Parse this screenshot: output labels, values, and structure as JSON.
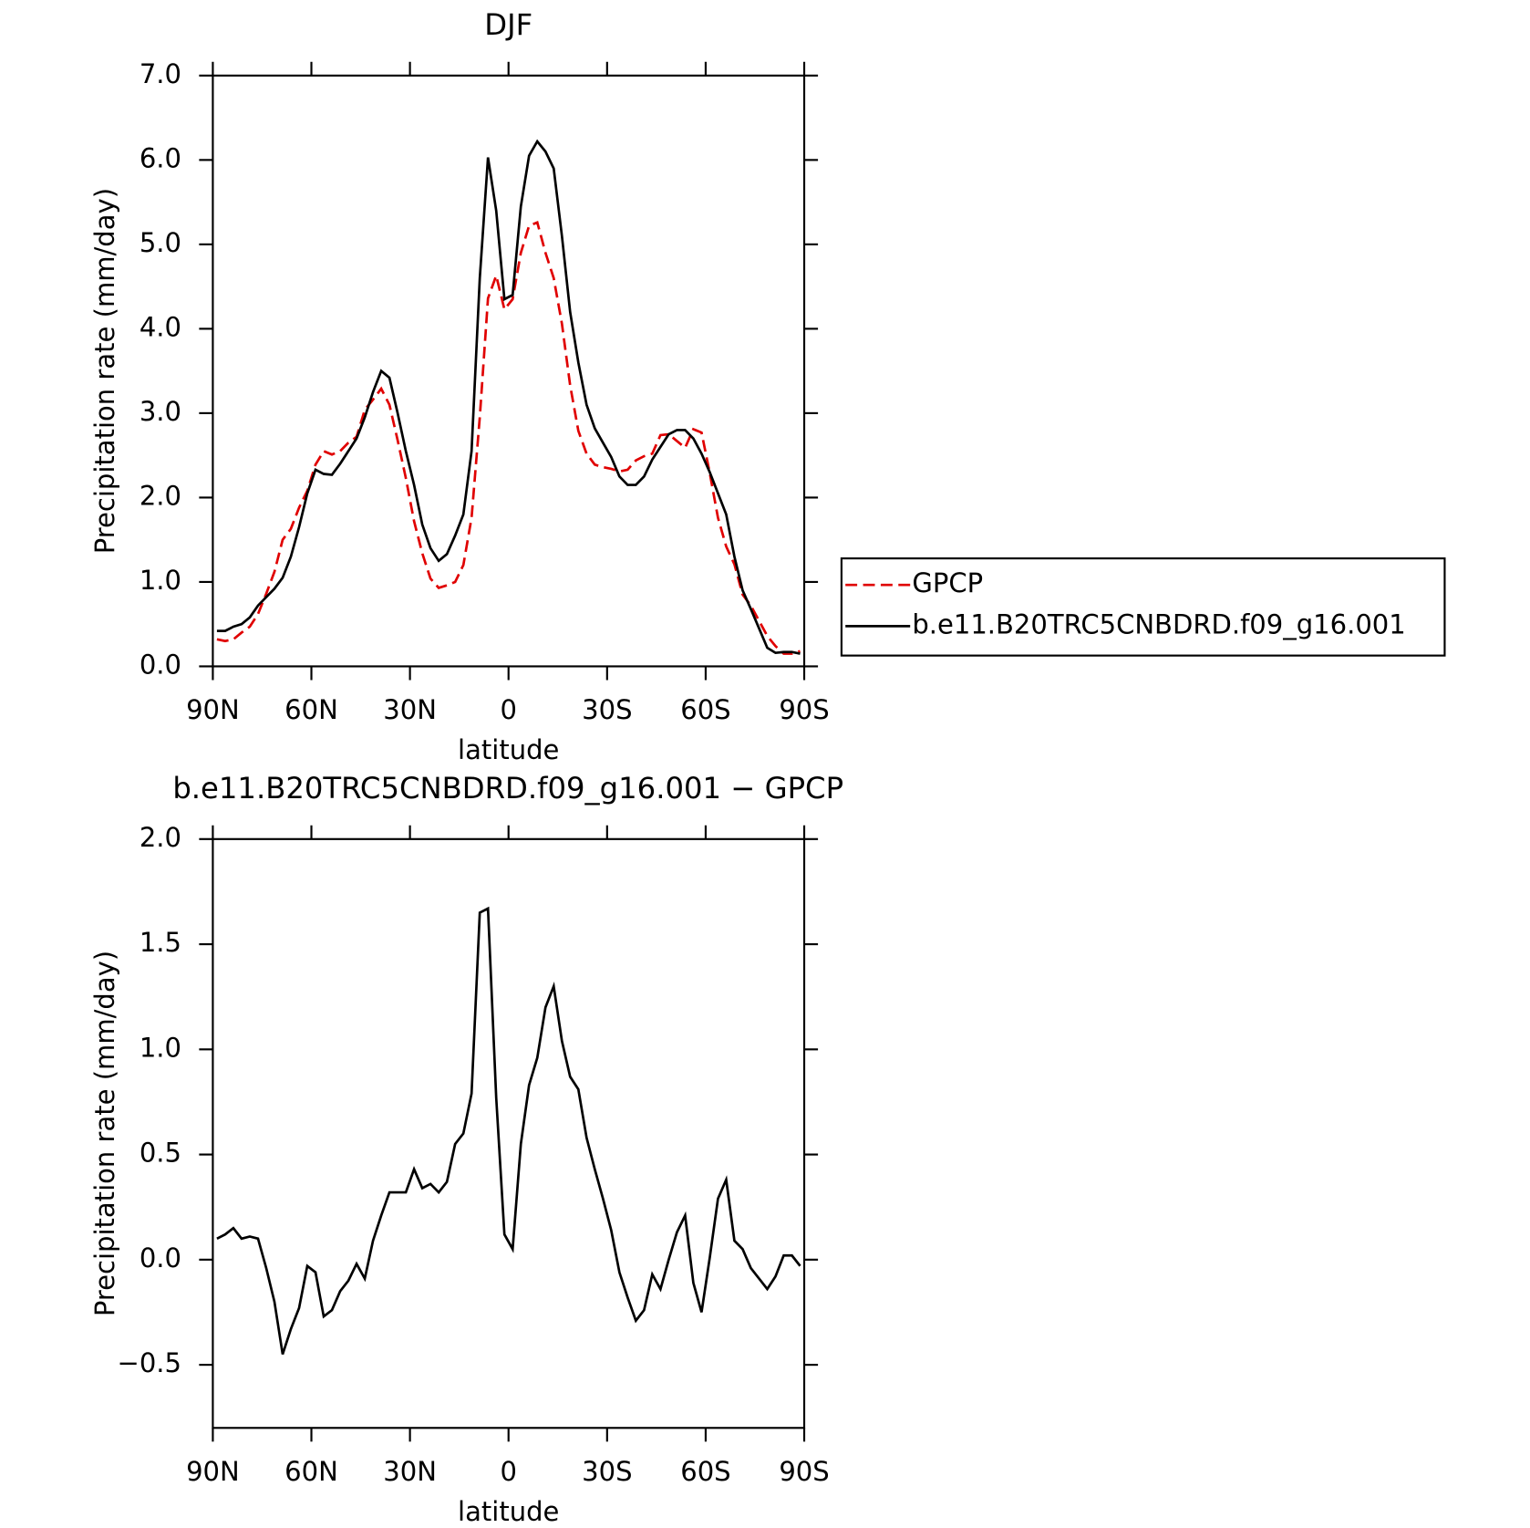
{
  "chart_data": [
    {
      "type": "line",
      "title": "DJF",
      "xlabel": "latitude",
      "ylabel": "Precipitation rate (mm/day)",
      "x": [
        88.75,
        86.25,
        83.75,
        81.25,
        78.75,
        76.25,
        73.75,
        71.25,
        68.75,
        66.25,
        63.75,
        61.25,
        58.75,
        56.25,
        53.75,
        51.25,
        48.75,
        46.25,
        43.75,
        41.25,
        38.75,
        36.25,
        33.75,
        31.25,
        28.75,
        26.25,
        23.75,
        21.25,
        18.75,
        16.25,
        13.75,
        11.25,
        8.75,
        6.25,
        3.75,
        1.25,
        -1.25,
        -3.75,
        -6.25,
        -8.75,
        -11.25,
        -13.75,
        -16.25,
        -18.75,
        -21.25,
        -23.75,
        -26.25,
        -28.75,
        -31.25,
        -33.75,
        -36.25,
        -38.75,
        -41.25,
        -43.75,
        -46.25,
        -48.75,
        -51.25,
        -53.75,
        -56.25,
        -58.75,
        -61.25,
        -63.75,
        -66.25,
        -68.75,
        -71.25,
        -73.75,
        -76.25,
        -78.75,
        -81.25,
        -83.75,
        -86.25,
        -88.75
      ],
      "series": [
        {
          "name": "GPCP",
          "color": "#e00000",
          "dashed": true,
          "values": [
            0.32,
            0.3,
            0.32,
            0.4,
            0.47,
            0.62,
            0.86,
            1.12,
            1.5,
            1.63,
            1.88,
            2.08,
            2.39,
            2.55,
            2.51,
            2.55,
            2.65,
            2.72,
            3.04,
            3.16,
            3.29,
            3.1,
            2.68,
            2.23,
            1.72,
            1.34,
            1.04,
            0.93,
            0.96,
            1.0,
            1.2,
            1.76,
            2.95,
            4.36,
            4.63,
            4.23,
            4.35,
            4.9,
            5.22,
            5.26,
            4.9,
            4.6,
            4.06,
            3.33,
            2.79,
            2.52,
            2.39,
            2.36,
            2.34,
            2.31,
            2.33,
            2.44,
            2.49,
            2.52,
            2.74,
            2.75,
            2.67,
            2.59,
            2.81,
            2.77,
            2.29,
            1.76,
            1.42,
            1.21,
            0.85,
            0.72,
            0.54,
            0.36,
            0.24,
            0.15,
            0.15,
            0.18
          ]
        },
        {
          "name": "b.e11.B20TRC5CNBDRD.f09_g16.001",
          "color": "#000000",
          "dashed": false,
          "values": [
            0.42,
            0.42,
            0.47,
            0.5,
            0.58,
            0.72,
            0.82,
            0.92,
            1.05,
            1.3,
            1.65,
            2.05,
            2.33,
            2.28,
            2.27,
            2.4,
            2.55,
            2.7,
            2.95,
            3.25,
            3.5,
            3.42,
            3.0,
            2.55,
            2.15,
            1.68,
            1.4,
            1.25,
            1.33,
            1.55,
            1.8,
            2.55,
            4.6,
            6.03,
            5.4,
            4.35,
            4.4,
            5.45,
            6.05,
            6.22,
            6.1,
            5.9,
            5.1,
            4.2,
            3.6,
            3.1,
            2.82,
            2.65,
            2.48,
            2.25,
            2.15,
            2.15,
            2.25,
            2.45,
            2.6,
            2.75,
            2.8,
            2.8,
            2.7,
            2.52,
            2.3,
            2.05,
            1.8,
            1.3,
            0.9,
            0.68,
            0.45,
            0.22,
            0.16,
            0.17,
            0.17,
            0.15
          ]
        }
      ],
      "xlim": [
        90,
        -90
      ],
      "xticks": [
        {
          "value": 90,
          "label": "90N"
        },
        {
          "value": 60,
          "label": "60N"
        },
        {
          "value": 30,
          "label": "30N"
        },
        0,
        {
          "value": -30,
          "label": "30S"
        },
        {
          "value": -60,
          "label": "60S"
        },
        {
          "value": -90,
          "label": "90S"
        }
      ],
      "ylim": [
        0,
        7
      ],
      "yticks": [
        {
          "value": 0,
          "label": "0.0"
        },
        {
          "value": 1,
          "label": "1.0"
        },
        {
          "value": 2,
          "label": "2.0"
        },
        {
          "value": 3,
          "label": "3.0"
        },
        {
          "value": 4,
          "label": "4.0"
        },
        {
          "value": 5,
          "label": "5.0"
        },
        {
          "value": 6,
          "label": "6.0"
        },
        {
          "value": 7,
          "label": "7.0"
        }
      ],
      "legend": "outside-right"
    },
    {
      "type": "line",
      "title": "b.e11.B20TRC5CNBDRD.f09_g16.001 − GPCP",
      "xlabel": "latitude",
      "ylabel": "Precipitation rate (mm/day)",
      "x": [
        88.75,
        86.25,
        83.75,
        81.25,
        78.75,
        76.25,
        73.75,
        71.25,
        68.75,
        66.25,
        63.75,
        61.25,
        58.75,
        56.25,
        53.75,
        51.25,
        48.75,
        46.25,
        43.75,
        41.25,
        38.75,
        36.25,
        33.75,
        31.25,
        28.75,
        26.25,
        23.75,
        21.25,
        18.75,
        16.25,
        13.75,
        11.25,
        8.75,
        6.25,
        3.75,
        1.25,
        -1.25,
        -3.75,
        -6.25,
        -8.75,
        -11.25,
        -13.75,
        -16.25,
        -18.75,
        -21.25,
        -23.75,
        -26.25,
        -28.75,
        -31.25,
        -33.75,
        -36.25,
        -38.75,
        -41.25,
        -43.75,
        -46.25,
        -48.75,
        -51.25,
        -53.75,
        -56.25,
        -58.75,
        -61.25,
        -63.75,
        -66.25,
        -68.75,
        -71.25,
        -73.75,
        -76.25,
        -78.75,
        -81.25,
        -83.75,
        -86.25,
        -88.75
      ],
      "color": "#000000",
      "values": [
        0.1,
        0.12,
        0.15,
        0.1,
        0.11,
        0.1,
        -0.04,
        -0.2,
        -0.45,
        -0.33,
        -0.23,
        -0.03,
        -0.06,
        -0.27,
        -0.24,
        -0.15,
        -0.1,
        -0.02,
        -0.09,
        0.09,
        0.21,
        0.32,
        0.32,
        0.32,
        0.43,
        0.34,
        0.36,
        0.32,
        0.37,
        0.55,
        0.6,
        0.79,
        1.65,
        1.67,
        0.77,
        0.12,
        0.05,
        0.55,
        0.83,
        0.96,
        1.2,
        1.3,
        1.04,
        0.87,
        0.81,
        0.58,
        0.43,
        0.29,
        0.14,
        -0.06,
        -0.18,
        -0.29,
        -0.24,
        -0.07,
        -0.14,
        0.0,
        0.13,
        0.21,
        -0.11,
        -0.25,
        0.01,
        0.29,
        0.38,
        0.09,
        0.05,
        -0.04,
        -0.09,
        -0.14,
        -0.08,
        0.02,
        0.02,
        -0.03
      ],
      "xlim": [
        90,
        -90
      ],
      "xticks": [
        {
          "value": 90,
          "label": "90N"
        },
        {
          "value": 60,
          "label": "60N"
        },
        {
          "value": 30,
          "label": "30N"
        },
        0,
        {
          "value": -30,
          "label": "30S"
        },
        {
          "value": -60,
          "label": "60S"
        },
        {
          "value": -90,
          "label": "90S"
        }
      ],
      "ylim": [
        -0.8,
        2.0
      ],
      "yticks": [
        {
          "value": -0.5,
          "label": "−0.5"
        },
        {
          "value": 0,
          "label": "0.0"
        },
        {
          "value": 0.5,
          "label": "0.5"
        },
        {
          "value": 1,
          "label": "1.0"
        },
        {
          "value": 1.5,
          "label": "1.5"
        },
        {
          "value": 2,
          "label": "2.0"
        }
      ]
    }
  ]
}
